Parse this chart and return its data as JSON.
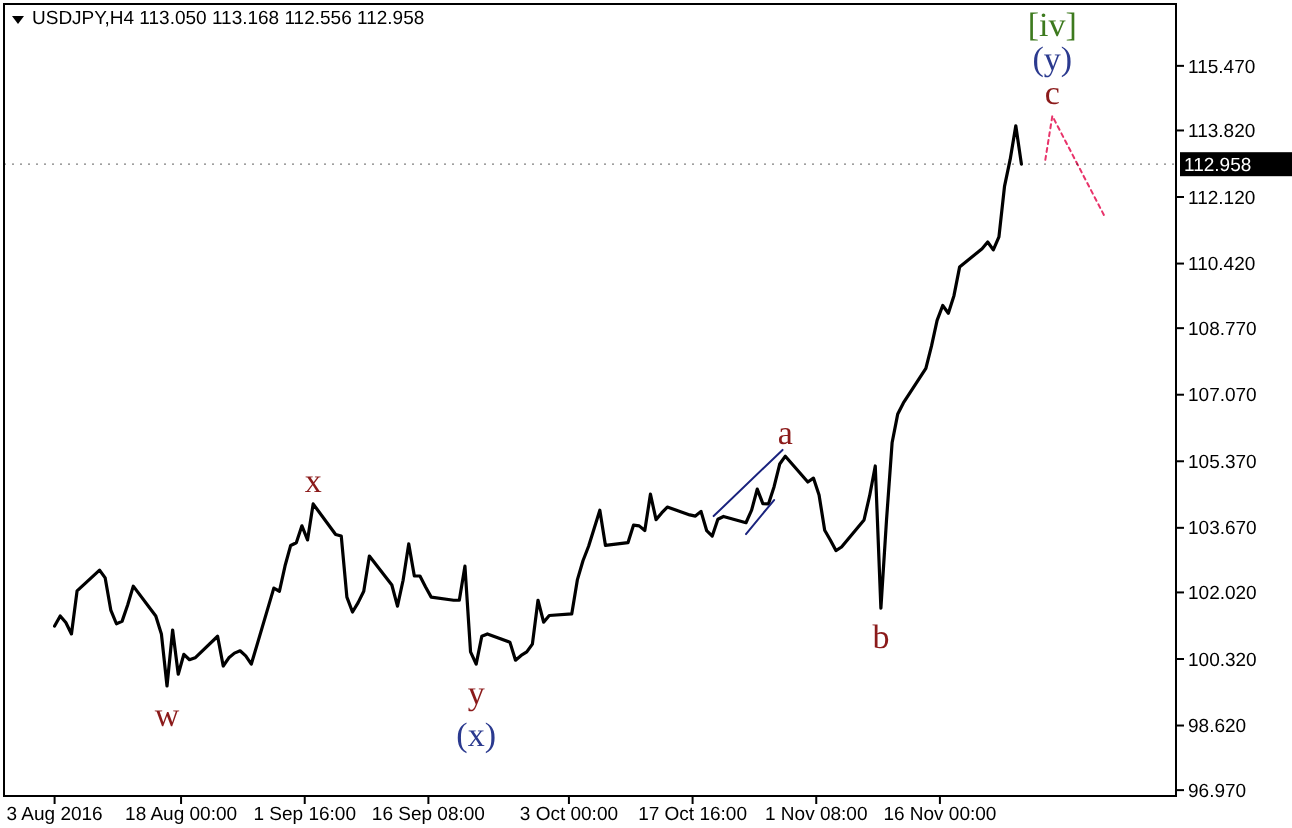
{
  "chart_data": {
    "type": "line",
    "title": "USDJPY,H4  113.050 113.168 112.556 112.958",
    "xlim": [
      "2016-07-28",
      "2016-12-14"
    ],
    "ylim": [
      96.82,
      117.05
    ],
    "xticks": [
      {
        "value": "2016-08-03",
        "label": "3 Aug 2016"
      },
      {
        "value": "2016-08-18T00:00",
        "label": "18 Aug 00:00"
      },
      {
        "value": "2016-09-01T16:00",
        "label": "1 Sep 16:00"
      },
      {
        "value": "2016-09-16T08:00",
        "label": "16 Sep 08:00"
      },
      {
        "value": "2016-10-03T00:00",
        "label": "3 Oct 00:00"
      },
      {
        "value": "2016-10-17T16:00",
        "label": "17 Oct 16:00"
      },
      {
        "value": "2016-11-01T08:00",
        "label": "1 Nov 08:00"
      },
      {
        "value": "2016-11-16T00:00",
        "label": "16 Nov 00:00"
      }
    ],
    "yticks": [
      {
        "value": 96.97,
        "label": "96.970"
      },
      {
        "value": 98.62,
        "label": "98.620"
      },
      {
        "value": 100.32,
        "label": "100.320"
      },
      {
        "value": 102.02,
        "label": "102.020"
      },
      {
        "value": 103.67,
        "label": "103.670"
      },
      {
        "value": 105.37,
        "label": "105.370"
      },
      {
        "value": 107.07,
        "label": "107.070"
      },
      {
        "value": 108.77,
        "label": "108.770"
      },
      {
        "value": 110.42,
        "label": "110.420"
      },
      {
        "value": 112.12,
        "label": "112.120"
      },
      {
        "value": 113.82,
        "label": "113.820"
      },
      {
        "value": 115.47,
        "label": "115.470"
      }
    ],
    "marker": "none",
    "line_style": "solid",
    "series": [
      {
        "color": "#000000",
        "x": [
          "2016-08-03T00:00",
          "2016-08-03T16:00",
          "2016-08-04T08:00",
          "2016-08-05T00:00",
          "2016-08-05T16:00",
          "2016-08-08T08:00",
          "2016-08-09T00:00",
          "2016-08-09T16:00",
          "2016-08-10T08:00",
          "2016-08-11T00:00",
          "2016-08-11T16:00",
          "2016-08-12T08:00",
          "2016-08-15T00:00",
          "2016-08-15T16:00",
          "2016-08-16T08:00",
          "2016-08-17T00:00",
          "2016-08-17T16:00",
          "2016-08-18T08:00",
          "2016-08-19T00:00",
          "2016-08-19T16:00",
          "2016-08-22T08:00",
          "2016-08-23T00:00",
          "2016-08-23T16:00",
          "2016-08-24T08:00",
          "2016-08-25T00:00",
          "2016-08-25T16:00",
          "2016-08-26T08:00",
          "2016-08-29T00:00",
          "2016-08-29T16:00",
          "2016-08-30T08:00",
          "2016-08-31T00:00",
          "2016-08-31T16:00",
          "2016-09-01T08:00",
          "2016-09-02T00:00",
          "2016-09-02T16:00",
          "2016-09-05T08:00",
          "2016-09-06T00:00",
          "2016-09-06T16:00",
          "2016-09-07T08:00",
          "2016-09-08T00:00",
          "2016-09-08T16:00",
          "2016-09-09T08:00",
          "2016-09-12T00:00",
          "2016-09-12T16:00",
          "2016-09-13T08:00",
          "2016-09-14T00:00",
          "2016-09-14T16:00",
          "2016-09-15T08:00",
          "2016-09-16T00:00",
          "2016-09-16T16:00",
          "2016-09-19T08:00",
          "2016-09-20T00:00",
          "2016-09-20T16:00",
          "2016-09-21T08:00",
          "2016-09-22T00:00",
          "2016-09-22T16:00",
          "2016-09-23T08:00",
          "2016-09-26T00:00",
          "2016-09-26T16:00",
          "2016-09-27T08:00",
          "2016-09-28T00:00",
          "2016-09-28T16:00",
          "2016-09-29T08:00",
          "2016-09-30T00:00",
          "2016-09-30T16:00",
          "2016-10-03T08:00",
          "2016-10-04T00:00",
          "2016-10-04T16:00",
          "2016-10-05T08:00",
          "2016-10-06T00:00",
          "2016-10-06T16:00",
          "2016-10-07T08:00",
          "2016-10-10T00:00",
          "2016-10-10T16:00",
          "2016-10-11T08:00",
          "2016-10-12T00:00",
          "2016-10-12T16:00",
          "2016-10-13T08:00",
          "2016-10-14T00:00",
          "2016-10-14T16:00",
          "2016-10-17T08:00",
          "2016-10-18T00:00",
          "2016-10-18T16:00",
          "2016-10-19T08:00",
          "2016-10-20T00:00",
          "2016-10-20T16:00",
          "2016-10-21T08:00",
          "2016-10-24T00:00",
          "2016-10-24T16:00",
          "2016-10-25T08:00",
          "2016-10-26T00:00",
          "2016-10-26T16:00",
          "2016-10-27T08:00",
          "2016-10-28T00:00",
          "2016-10-28T16:00",
          "2016-10-31T08:00",
          "2016-11-01T00:00",
          "2016-11-01T16:00",
          "2016-11-02T08:00",
          "2016-11-03T00:00",
          "2016-11-03T16:00",
          "2016-11-04T08:00",
          "2016-11-07T00:00",
          "2016-11-07T16:00",
          "2016-11-08T08:00",
          "2016-11-09T00:00",
          "2016-11-09T16:00",
          "2016-11-10T08:00",
          "2016-11-11T00:00",
          "2016-11-11T16:00",
          "2016-11-14T08:00",
          "2016-11-15T00:00",
          "2016-11-15T16:00",
          "2016-11-16T08:00",
          "2016-11-17T00:00",
          "2016-11-17T16:00",
          "2016-11-18T08:00",
          "2016-11-21T00:00",
          "2016-11-21T16:00",
          "2016-11-22T08:00",
          "2016-11-23T00:00",
          "2016-11-23T16:00",
          "2016-11-24T08:00",
          "2016-11-25T00:00",
          "2016-11-25T16:00"
        ],
        "values": [
          101.16,
          101.42,
          101.25,
          100.96,
          102.06,
          102.59,
          102.39,
          101.57,
          101.22,
          101.28,
          101.7,
          102.18,
          101.42,
          100.96,
          99.63,
          101.06,
          99.93,
          100.44,
          100.3,
          100.35,
          100.9,
          100.14,
          100.35,
          100.47,
          100.53,
          100.4,
          100.19,
          102.13,
          102.05,
          102.7,
          103.22,
          103.29,
          103.72,
          103.36,
          104.28,
          103.5,
          103.46,
          101.9,
          101.52,
          101.76,
          102.05,
          102.95,
          102.21,
          101.67,
          102.33,
          103.26,
          102.44,
          102.44,
          102.16,
          101.9,
          101.82,
          101.82,
          102.69,
          100.5,
          100.19,
          100.9,
          100.96,
          100.75,
          100.29,
          100.41,
          100.5,
          100.7,
          101.82,
          101.26,
          101.43,
          101.47,
          102.34,
          102.83,
          103.2,
          103.66,
          104.12,
          103.22,
          103.29,
          103.74,
          103.72,
          103.6,
          104.53,
          103.88,
          104.05,
          104.2,
          104.0,
          103.97,
          104.09,
          103.6,
          103.46,
          103.89,
          103.96,
          103.8,
          104.12,
          104.66,
          104.29,
          104.28,
          104.72,
          105.3,
          105.5,
          104.84,
          104.94,
          104.51,
          103.61,
          103.36,
          103.09,
          103.18,
          103.87,
          104.49,
          105.25,
          101.62,
          103.87,
          105.85,
          106.58,
          106.86,
          107.74,
          108.31,
          108.97,
          109.35,
          109.15,
          109.6,
          110.33,
          110.8,
          110.97,
          110.77,
          111.1,
          112.4,
          113.08,
          113.94,
          112.96
        ]
      },
      {
        "color": "#e8336a",
        "line_style": "dotted",
        "x": [
          "2016-11-28T12:00",
          "2016-11-29T08:00",
          "2016-12-05T12:00"
        ],
        "values": [
          113.07,
          114.19,
          111.64
        ]
      },
      {
        "color": "#1a237e",
        "x": [
          "2016-10-20T04:00",
          "2016-10-28T08:00"
        ],
        "values": [
          103.97,
          105.66
        ]
      },
      {
        "color": "#1a237e",
        "x": [
          "2016-10-24T00:00",
          "2016-10-27T08:00"
        ],
        "values": [
          103.51,
          104.38
        ]
      }
    ],
    "ref_lines": [
      {
        "axis": "y",
        "value": 112.958,
        "label": "112.958"
      }
    ],
    "annotations": [
      {
        "text": "w",
        "x": "2016-08-16T08:00",
        "y": 99.63
      },
      {
        "text": "x",
        "x": "2016-09-02T16:00",
        "y": 104.28
      },
      {
        "text": "y",
        "x": "2016-09-22T00:00",
        "y": 100.19
      },
      {
        "text": "(x)",
        "x": "2016-09-22T00:00",
        "y": 100.19
      },
      {
        "text": "a",
        "x": "2016-10-28T16:00",
        "y": 105.5
      },
      {
        "text": "b",
        "x": "2016-11-09T00:00",
        "y": 101.62
      },
      {
        "text": "c",
        "x": "2016-11-29T08:00",
        "y": 114.19
      },
      {
        "text": "(y)",
        "x": "2016-11-29T08:00",
        "y": 114.19
      },
      {
        "text": "[iv]",
        "x": "2016-11-29T08:00",
        "y": 114.19
      }
    ]
  }
}
